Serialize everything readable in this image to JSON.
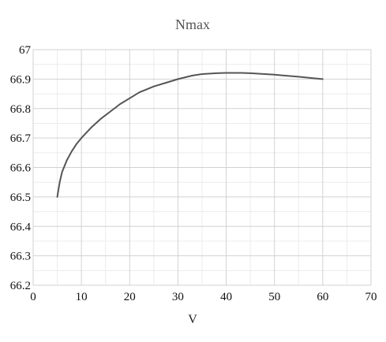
{
  "chart_data": {
    "type": "line",
    "title": "Nmax",
    "xlabel": "V",
    "ylabel": "",
    "xlim": [
      0,
      70
    ],
    "ylim": [
      66.2,
      67
    ],
    "x_ticks": [
      "0",
      "10",
      "20",
      "30",
      "40",
      "50",
      "60",
      "70"
    ],
    "y_ticks": [
      "66.2",
      "66.3",
      "66.4",
      "66.5",
      "66.6",
      "66.7",
      "66.8",
      "66.9",
      "67"
    ],
    "grid": true,
    "series": [
      {
        "color": "#555555",
        "x": [
          5,
          5.5,
          6,
          7,
          8,
          9,
          10,
          12,
          14,
          16,
          18,
          20,
          22,
          25,
          28,
          30,
          33,
          35,
          38,
          40,
          43,
          45,
          48,
          50,
          52,
          55,
          58,
          60
        ],
        "y": [
          66.5,
          66.55,
          66.585,
          66.625,
          66.655,
          66.68,
          66.7,
          66.735,
          66.765,
          66.79,
          66.815,
          66.835,
          66.855,
          66.875,
          66.89,
          66.9,
          66.912,
          66.917,
          66.92,
          66.921,
          66.921,
          66.92,
          66.917,
          66.915,
          66.912,
          66.908,
          66.903,
          66.9
        ]
      }
    ]
  }
}
